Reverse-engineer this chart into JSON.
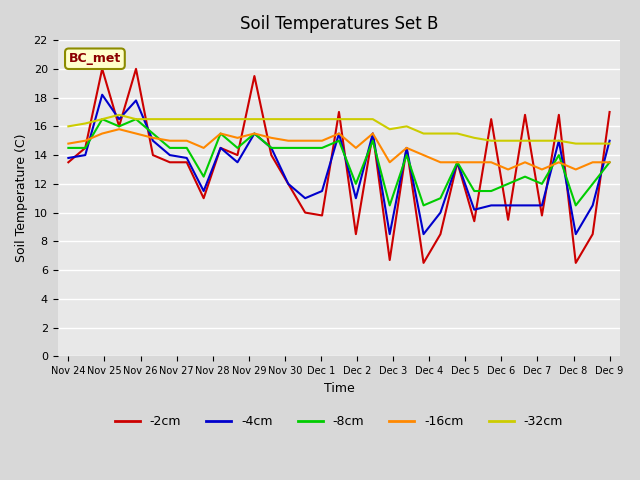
{
  "title": "Soil Temperatures Set B",
  "xlabel": "Time",
  "ylabel": "Soil Temperature (C)",
  "ylim": [
    0,
    22
  ],
  "yticks": [
    0,
    2,
    4,
    6,
    8,
    10,
    12,
    14,
    16,
    18,
    20,
    22
  ],
  "x_labels": [
    "Nov 24",
    "Nov 25",
    "Nov 26",
    "Nov 27",
    "Nov 28",
    "Nov 29",
    "Nov 30",
    "Dec 1",
    "Dec 2",
    "Dec 3",
    "Dec 4",
    "Dec 5",
    "Dec 6",
    "Dec 7",
    "Dec 8",
    "Dec 9"
  ],
  "annotation": "BC_met",
  "bg_color": "#e8e8e8",
  "plot_bg": "#f0f0f0",
  "grid_color": "white",
  "series": {
    "-2cm": {
      "color": "#cc0000",
      "values": [
        13.5,
        14.5,
        20.0,
        16.0,
        20.0,
        14.0,
        13.5,
        13.5,
        11.0,
        14.5,
        14.0,
        19.5,
        14.0,
        12.0,
        10.0,
        9.8,
        17.0,
        8.5,
        15.5,
        6.7,
        14.5,
        6.5,
        8.5,
        13.5,
        9.4,
        16.5,
        9.5,
        16.8,
        9.8,
        16.8,
        6.5,
        8.5,
        17.0
      ]
    },
    "-4cm": {
      "color": "#0000cc",
      "values": [
        13.8,
        14.0,
        18.2,
        16.5,
        17.8,
        15.0,
        14.0,
        13.8,
        11.5,
        14.5,
        13.5,
        15.5,
        14.5,
        12.0,
        11.0,
        11.5,
        15.5,
        11.0,
        15.5,
        8.5,
        14.5,
        8.5,
        10.0,
        13.5,
        10.2,
        10.5,
        10.5,
        10.5,
        10.5,
        15.0,
        8.5,
        10.5,
        15.0
      ]
    },
    "-8cm": {
      "color": "#00cc00",
      "values": [
        14.5,
        14.5,
        16.5,
        16.0,
        16.5,
        15.5,
        14.5,
        14.5,
        12.5,
        15.5,
        14.5,
        15.5,
        14.5,
        14.5,
        14.5,
        14.5,
        15.0,
        12.0,
        15.0,
        10.5,
        14.0,
        10.5,
        11.0,
        13.5,
        11.5,
        11.5,
        12.0,
        12.5,
        12.0,
        14.0,
        10.5,
        12.0,
        13.5
      ]
    },
    "-16cm": {
      "color": "#ff8800",
      "values": [
        14.8,
        15.0,
        15.5,
        15.8,
        15.5,
        15.2,
        15.0,
        15.0,
        14.5,
        15.5,
        15.2,
        15.5,
        15.2,
        15.0,
        15.0,
        15.0,
        15.5,
        14.5,
        15.5,
        13.5,
        14.5,
        14.0,
        13.5,
        13.5,
        13.5,
        13.5,
        13.0,
        13.5,
        13.0,
        13.5,
        13.0,
        13.5,
        13.5
      ]
    },
    "-32cm": {
      "color": "#cccc00",
      "values": [
        16.0,
        16.2,
        16.5,
        16.8,
        16.5,
        16.5,
        16.5,
        16.5,
        16.5,
        16.5,
        16.5,
        16.5,
        16.5,
        16.5,
        16.5,
        16.5,
        16.5,
        16.5,
        16.5,
        15.8,
        16.0,
        15.5,
        15.5,
        15.5,
        15.2,
        15.0,
        15.0,
        15.0,
        15.0,
        15.0,
        14.8,
        14.8,
        14.8
      ]
    }
  },
  "legend_order": [
    "-2cm",
    "-4cm",
    "-8cm",
    "-16cm",
    "-32cm"
  ]
}
